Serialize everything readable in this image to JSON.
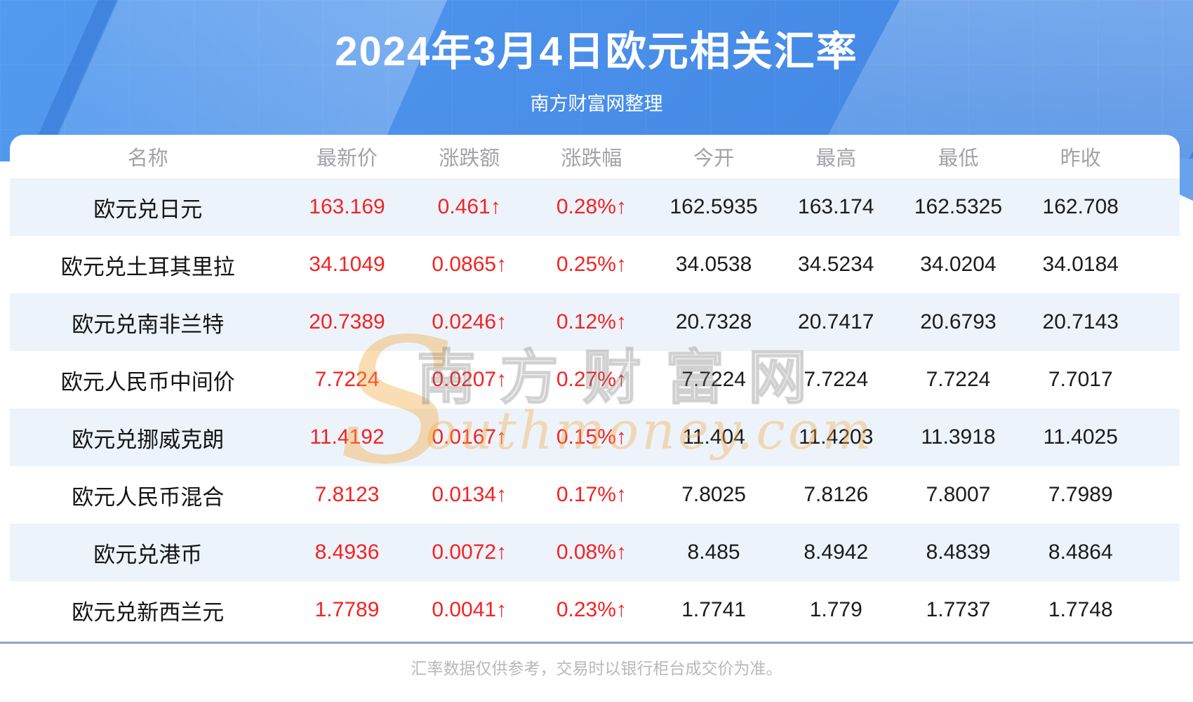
{
  "header": {
    "title": "2024年3月4日欧元相关汇率",
    "subtitle": "南方财富网整理"
  },
  "chart_data": {
    "type": "table",
    "title": "2024年3月4日欧元相关汇率",
    "subtitle": "南方财富网整理",
    "columns": [
      "名称",
      "最新价",
      "涨跌额",
      "涨跌幅",
      "今开",
      "最高",
      "最低",
      "昨收"
    ],
    "rows": [
      {
        "name": "欧元兑日元",
        "latest": "163.169",
        "change": "0.461↑",
        "change_pct": "0.28%↑",
        "open": "162.5935",
        "high": "163.174",
        "low": "162.5325",
        "prev_close": "162.708"
      },
      {
        "name": "欧元兑土耳其里拉",
        "latest": "34.1049",
        "change": "0.0865↑",
        "change_pct": "0.25%↑",
        "open": "34.0538",
        "high": "34.5234",
        "low": "34.0204",
        "prev_close": "34.0184"
      },
      {
        "name": "欧元兑南非兰特",
        "latest": "20.7389",
        "change": "0.0246↑",
        "change_pct": "0.12%↑",
        "open": "20.7328",
        "high": "20.7417",
        "low": "20.6793",
        "prev_close": "20.7143"
      },
      {
        "name": "欧元人民币中间价",
        "latest": "7.7224",
        "change": "0.0207↑",
        "change_pct": "0.27%↑",
        "open": "7.7224",
        "high": "7.7224",
        "low": "7.7224",
        "prev_close": "7.7017"
      },
      {
        "name": "欧元兑挪威克朗",
        "latest": "11.4192",
        "change": "0.0167↑",
        "change_pct": "0.15%↑",
        "open": "11.404",
        "high": "11.4203",
        "low": "11.3918",
        "prev_close": "11.4025"
      },
      {
        "name": "欧元人民币混合",
        "latest": "7.8123",
        "change": "0.0134↑",
        "change_pct": "0.17%↑",
        "open": "7.8025",
        "high": "7.8126",
        "low": "7.8007",
        "prev_close": "7.7989"
      },
      {
        "name": "欧元兑港币",
        "latest": "8.4936",
        "change": "0.0072↑",
        "change_pct": "0.08%↑",
        "open": "8.485",
        "high": "8.4942",
        "low": "8.4839",
        "prev_close": "8.4864"
      },
      {
        "name": "欧元兑新西兰元",
        "latest": "1.7789",
        "change": "0.0041↑",
        "change_pct": "0.23%↑",
        "open": "1.7741",
        "high": "1.779",
        "low": "1.7737",
        "prev_close": "1.7748"
      }
    ],
    "up_arrow_glyph": "↑",
    "footnote": "汇率数据仅供参考，交易时以银行柜台成交价为准。"
  },
  "watermark": {
    "s": "S",
    "cn": "南方财富网",
    "en": "outhmoney.com"
  },
  "footer": {
    "note": "汇率数据仅供参考，交易时以银行柜台成交价为准。"
  },
  "colors": {
    "banner_blue": "#4a8fe9",
    "stripe_blue": "#ecf3fb",
    "rise_red": "#f52222",
    "header_gray": "#a2a2a8",
    "footer_gray": "#b8b8b8",
    "divider_blue_gray": "#8fa6c4",
    "watermark_orange": "#f6aa40"
  }
}
